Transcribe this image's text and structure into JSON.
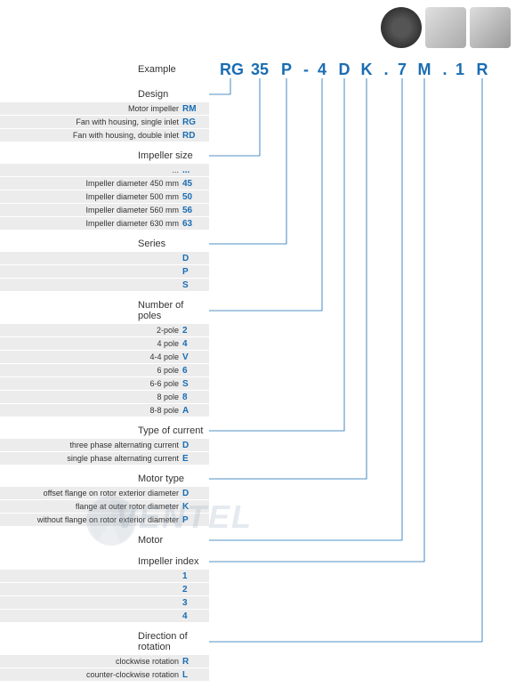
{
  "example_label": "Example",
  "code": {
    "design": "RG",
    "size": "35",
    "series": "P",
    "sep1": "-",
    "poles": "4",
    "current": "D",
    "motor_type": "K",
    "sep2": ".",
    "motor": "7",
    "impeller_index": "M",
    "sep3": ".",
    "unknown": "1",
    "rotation": "R"
  },
  "code_positions": {
    "design_x": 257,
    "size_x": 290,
    "series_x": 320,
    "sep1_x": 342,
    "poles_x": 360,
    "current_x": 385,
    "motor_type_x": 410,
    "sep2_x": 432,
    "motor_x": 450,
    "impeller_index_x": 475,
    "sep3_x": 498,
    "unknown_x": 515,
    "rotation_x": 540
  },
  "colors": {
    "accent": "#1a6db3",
    "text": "#333333",
    "row_bg": "#ececec",
    "line": "#1a6db3",
    "background": "#ffffff"
  },
  "sections": [
    {
      "title": "Design",
      "connect_x": 257,
      "rows": [
        {
          "label": "Motor impeller",
          "code": "RM"
        },
        {
          "label": "Fan with housing, single inlet",
          "code": "RG"
        },
        {
          "label": "Fan with housing, double inlet",
          "code": "RD"
        }
      ]
    },
    {
      "title": "Impeller size",
      "connect_x": 290,
      "rows": [
        {
          "label": "...",
          "code": "...",
          "nobg": false
        },
        {
          "label": "Impeller diameter 450 mm",
          "code": "45"
        },
        {
          "label": "Impeller diameter 500 mm",
          "code": "50"
        },
        {
          "label": "Impeller diameter 560 mm",
          "code": "56"
        },
        {
          "label": "Impeller diameter 630 mm",
          "code": "63"
        }
      ]
    },
    {
      "title": "Series",
      "connect_x": 320,
      "rows": [
        {
          "label": "",
          "code": "D"
        },
        {
          "label": "",
          "code": "P"
        },
        {
          "label": "",
          "code": "S"
        }
      ]
    },
    {
      "title": "Number of poles",
      "connect_x": 360,
      "rows": [
        {
          "label": "2-pole",
          "code": "2"
        },
        {
          "label": "4 pole",
          "code": "4"
        },
        {
          "label": "4-4 pole",
          "code": "V"
        },
        {
          "label": "6 pole",
          "code": "6"
        },
        {
          "label": "6-6 pole",
          "code": "S"
        },
        {
          "label": "8 pole",
          "code": "8"
        },
        {
          "label": "8-8 pole",
          "code": "A"
        }
      ]
    },
    {
      "title": "Type of current",
      "connect_x": 385,
      "rows": [
        {
          "label": "three phase alternating current",
          "code": "D"
        },
        {
          "label": "single phase alternating current",
          "code": "E"
        }
      ]
    },
    {
      "title": "Motor type",
      "connect_x": 410,
      "rows": [
        {
          "label": "offset flange on rotor exterior diameter",
          "code": "D"
        },
        {
          "label": "flange at outer rotor diameter",
          "code": "K"
        },
        {
          "label": "without flange on rotor exterior diameter",
          "code": "P"
        }
      ]
    },
    {
      "title": "Motor",
      "connect_x": 450,
      "rows": []
    },
    {
      "title": "Impeller index",
      "connect_x": 475,
      "rows": [
        {
          "label": "",
          "code": "1"
        },
        {
          "label": "",
          "code": "2"
        },
        {
          "label": "",
          "code": "3"
        },
        {
          "label": "",
          "code": "4"
        }
      ]
    },
    {
      "title": "Direction of rotation",
      "connect_x": 540,
      "rows": [
        {
          "label": "clockwise rotation",
          "code": "R"
        },
        {
          "label": "counter-clockwise rotation",
          "code": "L"
        }
      ]
    }
  ],
  "watermark": "VENTEL",
  "line_style": {
    "stroke_width": 0.8
  }
}
